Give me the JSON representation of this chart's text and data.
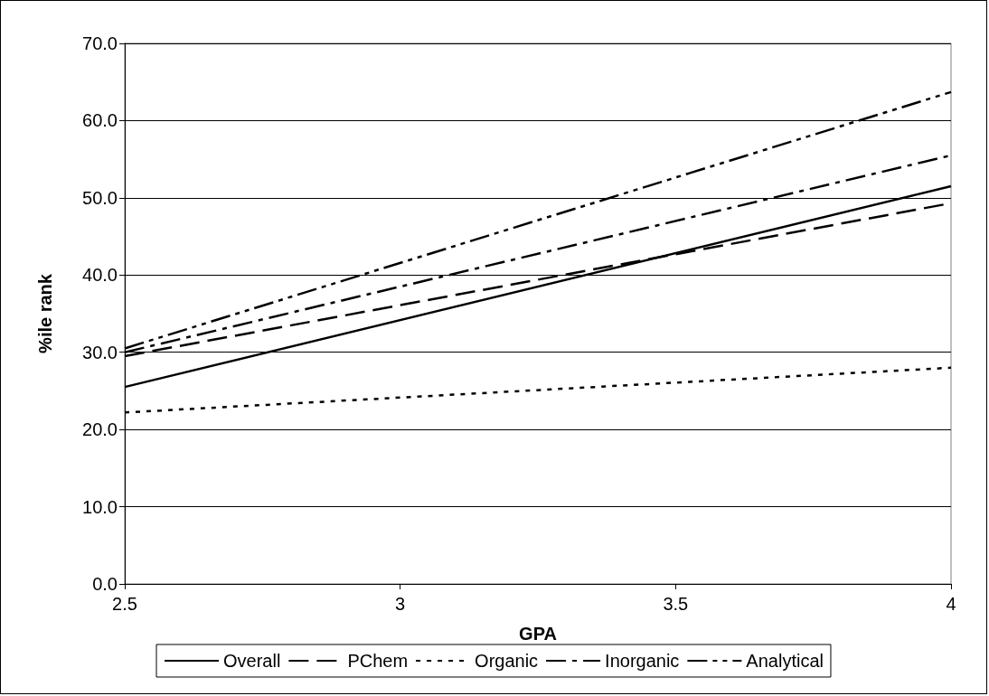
{
  "chart_data": {
    "type": "line",
    "xlabel": "GPA",
    "ylabel": "%ile rank",
    "xlim": [
      2.5,
      4
    ],
    "xticks": [
      2.5,
      3,
      3.5,
      4
    ],
    "ylim": [
      0,
      70
    ],
    "yticks": [
      {
        "value": 0,
        "label": "0.0"
      },
      {
        "value": 10,
        "label": "10.0"
      },
      {
        "value": 20,
        "label": "20.0"
      },
      {
        "value": 30,
        "label": "30.0"
      },
      {
        "value": 40,
        "label": "40.0"
      },
      {
        "value": 50,
        "label": "50.0"
      },
      {
        "value": 60,
        "label": "60.0"
      },
      {
        "value": 70,
        "label": "70.0"
      }
    ],
    "grid": "y",
    "legend": "bottom",
    "marker": "none",
    "x": [
      2.5,
      4
    ],
    "series": [
      {
        "name": "Overall",
        "color": "#000000",
        "line_style": "solid",
        "values": [
          25.5,
          51.5
        ]
      },
      {
        "name": "PChem",
        "color": "#000000",
        "line_style": "dashed",
        "values": [
          29.5,
          49.3
        ]
      },
      {
        "name": "Organic",
        "color": "#000000",
        "line_style": "dotted",
        "values": [
          22.2,
          28.0
        ]
      },
      {
        "name": "Inorganic",
        "color": "#000000",
        "line_style": "dashdot",
        "values": [
          30.0,
          55.5
        ]
      },
      {
        "name": "Analytical",
        "color": "#000000",
        "line_style": "dashdotdot",
        "values": [
          30.5,
          63.7
        ]
      }
    ]
  }
}
